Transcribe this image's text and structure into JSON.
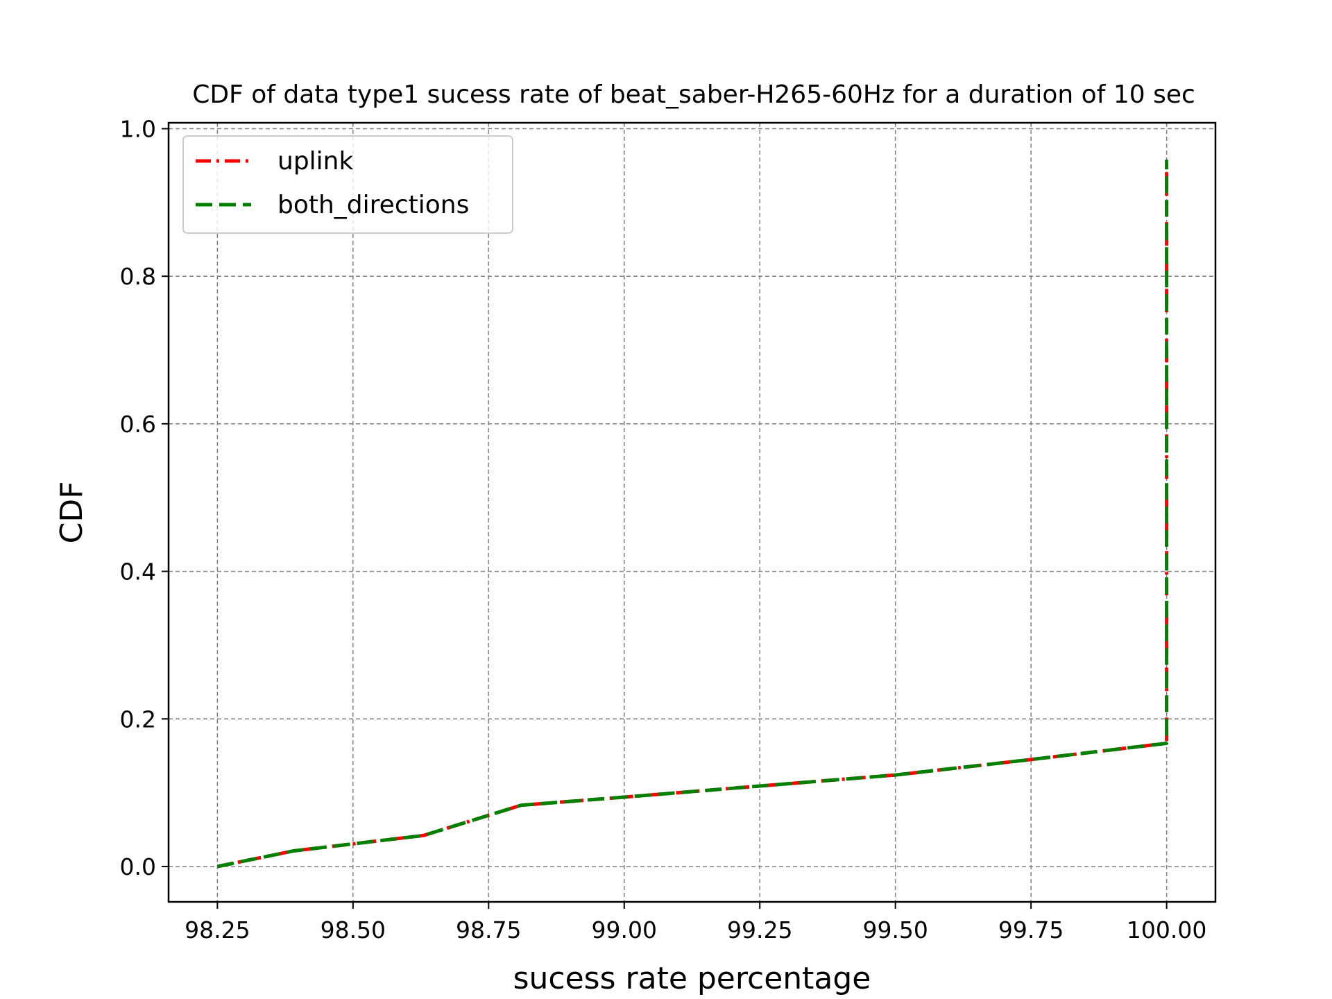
{
  "chart_data": {
    "type": "line",
    "title": "CDF of data type1 sucess rate of beat_saber-H265-60Hz for a duration of 10 sec",
    "xlabel": "sucess rate percentage",
    "ylabel": "CDF",
    "xlim": [
      98.16,
      100.09
    ],
    "ylim": [
      -0.048,
      1.008
    ],
    "xticks": [
      98.25,
      98.5,
      98.75,
      99.0,
      99.25,
      99.5,
      99.75,
      100.0
    ],
    "xtick_labels": [
      "98.25",
      "98.50",
      "98.75",
      "99.00",
      "99.25",
      "99.50",
      "99.75",
      "100.00"
    ],
    "yticks": [
      0.0,
      0.2,
      0.4,
      0.6,
      0.8,
      1.0
    ],
    "ytick_labels": [
      "0.0",
      "0.2",
      "0.4",
      "0.6",
      "0.8",
      "1.0"
    ],
    "grid": true,
    "legend_position": "top-left",
    "series": [
      {
        "name": "uplink",
        "color": "#ff0000",
        "style": "dashdot",
        "x": [
          98.25,
          98.39,
          98.63,
          98.81,
          99.0,
          99.25,
          99.5,
          99.75,
          100.0,
          100.0
        ],
        "y": [
          0.0,
          0.021,
          0.042,
          0.083,
          0.094,
          0.109,
          0.124,
          0.145,
          0.167,
          0.958
        ]
      },
      {
        "name": "both_directions",
        "color": "#008000",
        "style": "dashed",
        "x": [
          98.25,
          98.39,
          98.63,
          98.81,
          99.0,
          99.25,
          99.5,
          99.75,
          100.0,
          100.0
        ],
        "y": [
          0.0,
          0.021,
          0.042,
          0.083,
          0.094,
          0.109,
          0.124,
          0.145,
          0.167,
          0.958
        ]
      }
    ]
  }
}
